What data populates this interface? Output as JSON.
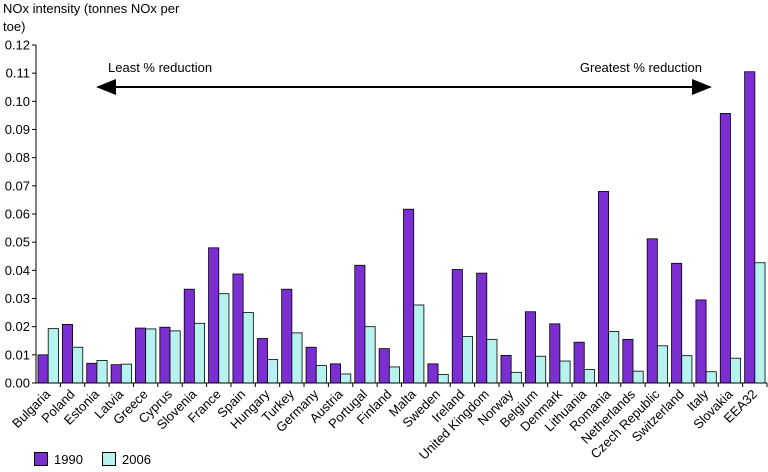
{
  "chart_data": {
    "type": "bar",
    "ylabel": "NOx intensity (tonnes NOx per toe)",
    "ylim": [
      0,
      0.12
    ],
    "yticks": [
      "0.00",
      "0.01",
      "0.02",
      "0.03",
      "0.04",
      "0.05",
      "0.06",
      "0.07",
      "0.08",
      "0.09",
      "0.10",
      "0.11",
      "0.12"
    ],
    "grid": false,
    "categories": [
      "Bulgaria",
      "Poland",
      "Estonia",
      "Latvia",
      "Greece",
      "Cyprus",
      "Slovenia",
      "France",
      "Spain",
      "Hungary",
      "Turkey",
      "Germany",
      "Austria",
      "Portugal",
      "Finland",
      "Malta",
      "Sweden",
      "Ireland",
      "United Kingdom",
      "Norway",
      "Belgium",
      "Denmark",
      "Lithuania",
      "Romania",
      "Netherlands",
      "Czech Republic",
      "Switzerland",
      "Italy",
      "Slovakia",
      "EEA32"
    ],
    "series": [
      {
        "name": "1990",
        "color": "#7b2fd0",
        "values": [
          0.01,
          0.0208,
          0.007,
          0.0065,
          0.0195,
          0.0198,
          0.0333,
          0.048,
          0.0387,
          0.0158,
          0.0333,
          0.0127,
          0.0068,
          0.0418,
          0.0122,
          0.0617,
          0.0068,
          0.0403,
          0.039,
          0.0098,
          0.0253,
          0.021,
          0.0145,
          0.068,
          0.0155,
          0.0512,
          0.0425,
          0.0295,
          0.0957,
          0.1105
        ]
      },
      {
        "name": "2006",
        "color": "#b7f3ee",
        "values": [
          0.0193,
          0.0127,
          0.008,
          0.0067,
          0.0192,
          0.0185,
          0.0212,
          0.0317,
          0.025,
          0.0083,
          0.0178,
          0.0062,
          0.0032,
          0.02,
          0.0057,
          0.0277,
          0.003,
          0.0165,
          0.0155,
          0.0038,
          0.0095,
          0.0078,
          0.0048,
          0.0183,
          0.0042,
          0.0132,
          0.0097,
          0.004,
          0.0088,
          0.0427
        ]
      }
    ],
    "annotations": {
      "left": "Least % reduction",
      "right": "Greatest % reduction"
    },
    "legend_position": "bottom-left"
  }
}
